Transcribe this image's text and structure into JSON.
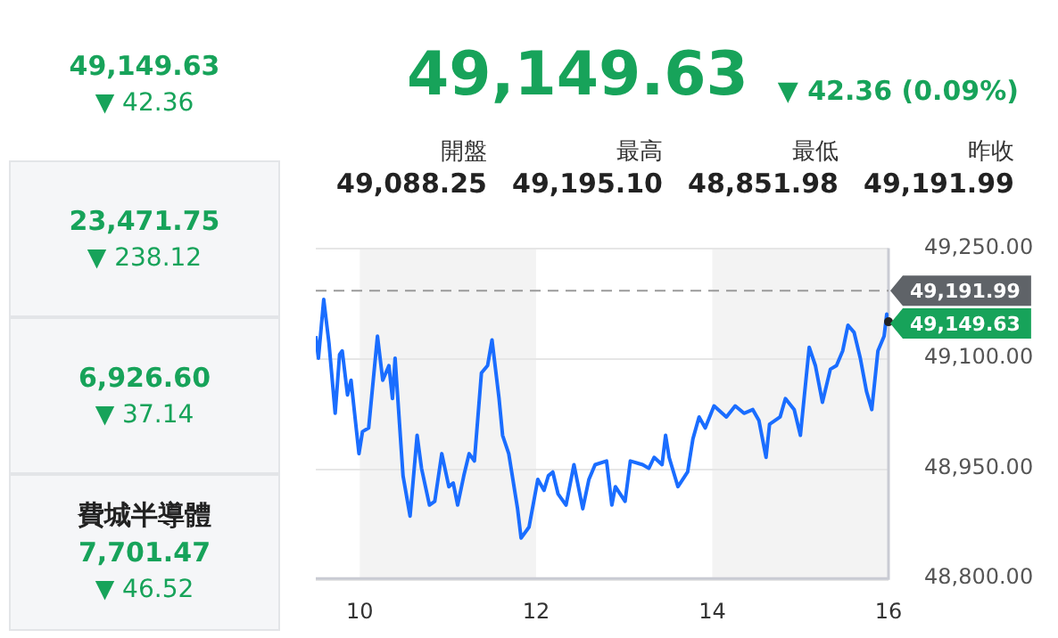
{
  "chart_data": [
    {
      "type": "other",
      "annotations": [
        "49,149.63",
        "▼ 42.36"
      ]
    },
    {
      "type": "other",
      "annotations": [
        "23,471.75",
        "▼ 238.12"
      ]
    },
    {
      "type": "other",
      "annotations": [
        "6,926.60",
        "▼ 37.14"
      ]
    },
    {
      "type": "other",
      "annotations": [
        "費城半導體",
        "7,701.47",
        "▼ 46.52"
      ]
    },
    {
      "type": "line",
      "title": "49,149.63",
      "subtitle": "▼ 42.36 (0.09%)",
      "annotations": [
        "開盤",
        "49,088.25",
        "最高",
        "49,195.10",
        "最低",
        "48,851.98",
        "昨收",
        "49,191.99",
        {
          "text": "49,149.63",
          "x": 16,
          "y": 49149.63
        }
      ],
      "x": [
        9.5,
        9.53,
        9.59,
        9.65,
        9.72,
        9.77,
        9.8,
        9.86,
        9.9,
        9.99,
        10.03,
        10.1,
        10.2,
        10.26,
        10.33,
        10.37,
        10.4,
        10.49,
        10.57,
        10.65,
        10.7,
        10.79,
        10.85,
        10.93,
        11.01,
        11.06,
        11.11,
        11.18,
        11.24,
        11.3,
        11.38,
        11.45,
        11.5,
        11.58,
        11.62,
        11.69,
        11.79,
        11.83,
        11.92,
        12.02,
        12.09,
        12.14,
        12.19,
        12.25,
        12.34,
        12.43,
        12.53,
        12.6,
        12.67,
        12.8,
        12.86,
        12.9,
        13.01,
        13.07,
        13.21,
        13.28,
        13.34,
        13.43,
        13.47,
        13.51,
        13.61,
        13.72,
        13.78,
        13.85,
        13.92,
        14.02,
        14.16,
        14.26,
        14.36,
        14.46,
        14.53,
        14.61,
        14.65,
        14.77,
        14.83,
        14.93,
        15,
        15.1,
        15.17,
        15.25,
        15.34,
        15.41,
        15.48,
        15.54,
        15.61,
        15.68,
        15.75,
        15.81,
        15.88,
        15.95,
        15.98,
        16
      ],
      "series": [
        {
          "color": "#1a6dff",
          "values": [
            49130,
            49100,
            49180,
            49120,
            49025,
            49105,
            49110,
            49050,
            49070,
            48970,
            49000,
            49005,
            49130,
            49070,
            49090,
            49045,
            49100,
            48940,
            48885,
            48995,
            48950,
            48900,
            48905,
            48970,
            48925,
            48930,
            48900,
            48940,
            48970,
            48960,
            49080,
            49090,
            49125,
            49045,
            48995,
            48970,
            48895,
            48855,
            48870,
            48935,
            48920,
            48940,
            48945,
            48915,
            48900,
            48955,
            48895,
            48935,
            48955,
            48960,
            48900,
            48925,
            48905,
            48960,
            48955,
            48950,
            48965,
            48955,
            48995,
            48965,
            48925,
            48945,
            48990,
            49020,
            49005,
            49035,
            49020,
            49035,
            49025,
            49030,
            49015,
            48965,
            49010,
            49020,
            49045,
            49030,
            48995,
            49115,
            49090,
            49040,
            49085,
            49090,
            49110,
            49145,
            49135,
            49100,
            49055,
            49030,
            49110,
            49130,
            49160,
            49149.63
          ]
        }
      ],
      "xlim": [
        9.5,
        16
      ],
      "xticks": [
        10,
        12,
        14,
        16
      ],
      "ylim": [
        48800,
        49250
      ],
      "yticks": [
        {
          "value": 48800,
          "label": "48,800.00"
        },
        {
          "value": 48950,
          "label": "48,950.00"
        },
        {
          "value": 49100,
          "label": "49,100.00"
        },
        {
          "value": 49250,
          "label": "49,250.00"
        }
      ],
      "ref_lines": [
        {
          "axis": "y",
          "value": 49191.99,
          "label": "49,191.99",
          "color": "#9a9a9a",
          "line_style": "dashed"
        }
      ],
      "bands": [
        {
          "axis": "x",
          "from": 10,
          "to": 12,
          "color": "#f3f3f3"
        },
        {
          "axis": "x",
          "from": 14,
          "to": 16,
          "color": "#f3f3f3"
        }
      ],
      "grid": "y",
      "legend": false,
      "marker": "none",
      "line_style": "solid"
    }
  ]
}
